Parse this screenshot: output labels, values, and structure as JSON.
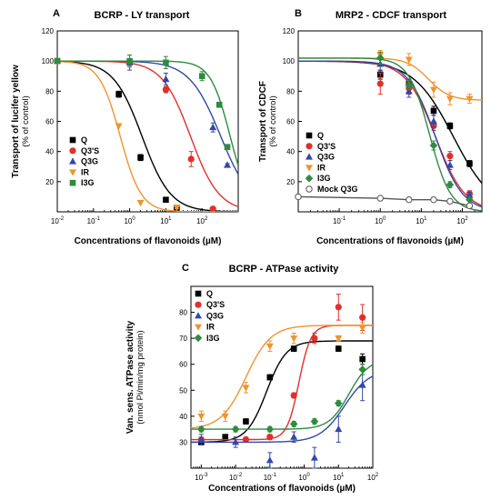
{
  "chart_data": [
    {
      "type": "scatter",
      "panel": "A",
      "title": "BCRP - LY transport",
      "xlabel": "Concentrations of flavonoids (µM)",
      "ylabel": "Transport of lucifer yellow",
      "ylabel_sub": "(% of control)",
      "xscale": "log",
      "xlim": [
        0.01,
        1000
      ],
      "ylim": [
        0,
        120
      ],
      "xticks": [
        {
          "v": 0.01,
          "base": "10",
          "exp": "-2"
        },
        {
          "v": 0.1,
          "base": "10",
          "exp": "-1"
        },
        {
          "v": 1,
          "base": "10",
          "exp": "0"
        },
        {
          "v": 10,
          "base": "10",
          "exp": "1"
        },
        {
          "v": 100,
          "base": "10",
          "exp": "2"
        }
      ],
      "yticks": [
        20,
        40,
        60,
        80,
        100,
        120
      ],
      "legend_position": "left",
      "series": [
        {
          "name": "Q",
          "color": "#000000",
          "marker": "square",
          "points": [
            {
              "x": 0.01,
              "y": 100
            },
            {
              "x": 0.5,
              "y": 78
            },
            {
              "x": 2,
              "y": 36
            },
            {
              "x": 10,
              "y": 8
            },
            {
              "x": 20,
              "y": 2
            }
          ],
          "yerr": [
            0,
            2,
            2,
            1,
            1
          ],
          "curve": {
            "top": 100,
            "bottom": 0,
            "ic50": 2.2,
            "hill": 1.1
          }
        },
        {
          "name": "Q3'S",
          "color": "#e0302b",
          "marker": "circle",
          "points": [
            {
              "x": 0.01,
              "y": 100
            },
            {
              "x": 1,
              "y": 99
            },
            {
              "x": 10,
              "y": 81
            },
            {
              "x": 50,
              "y": 35
            },
            {
              "x": 200,
              "y": 2
            }
          ],
          "yerr": [
            0,
            2,
            2,
            5,
            1
          ],
          "curve": {
            "top": 100,
            "bottom": 0,
            "ic50": 48,
            "hill": 1.1
          }
        },
        {
          "name": "Q3G",
          "color": "#3348a8",
          "marker": "triangle",
          "points": [
            {
              "x": 0.01,
              "y": 100
            },
            {
              "x": 1,
              "y": 99
            },
            {
              "x": 10,
              "y": 88
            },
            {
              "x": 200,
              "y": 56
            },
            {
              "x": 500,
              "y": 31
            }
          ],
          "yerr": [
            0,
            5,
            4,
            3,
            1
          ],
          "curve": {
            "top": 100,
            "bottom": 0,
            "ic50": 330,
            "hill": 1.0
          }
        },
        {
          "name": "IR",
          "color": "#f0932e",
          "marker": "triangle-down",
          "points": [
            {
              "x": 0.01,
              "y": 100
            },
            {
              "x": 0.5,
              "y": 57
            },
            {
              "x": 2,
              "y": 6
            },
            {
              "x": 20,
              "y": 3
            }
          ],
          "yerr": [
            0,
            0,
            0,
            1
          ],
          "curve": {
            "top": 100,
            "bottom": 0,
            "ic50": 0.55,
            "hill": 1.5
          }
        },
        {
          "name": "I3G",
          "color": "#2e8b3e",
          "marker": "square",
          "points": [
            {
              "x": 0.01,
              "y": 100
            },
            {
              "x": 1,
              "y": 100
            },
            {
              "x": 10,
              "y": 99
            },
            {
              "x": 100,
              "y": 90
            },
            {
              "x": 300,
              "y": 71
            },
            {
              "x": 500,
              "y": 43
            }
          ],
          "yerr": [
            0,
            4,
            4,
            3,
            1,
            1
          ],
          "curve": {
            "top": 100,
            "bottom": 0,
            "ic50": 600,
            "hill": 1.6
          }
        }
      ]
    },
    {
      "type": "scatter",
      "panel": "B",
      "title": "MRP2 - CDCF transport",
      "xlabel": "Concentrations of flavonoids (µM)",
      "ylabel": "Transport of CDCF",
      "ylabel_sub": "(% of control)",
      "xscale": "log",
      "xlim": [
        0.01,
        300
      ],
      "ylim": [
        0,
        120
      ],
      "xticks": [
        {
          "v": 0.1,
          "base": "10",
          "exp": "-1"
        },
        {
          "v": 1,
          "base": "10",
          "exp": "0"
        },
        {
          "v": 10,
          "base": "10",
          "exp": "1"
        },
        {
          "v": 100,
          "base": "10",
          "exp": "2"
        }
      ],
      "yticks": [
        20,
        40,
        60,
        80,
        100,
        120
      ],
      "legend_position": "right",
      "series": [
        {
          "name": "Q",
          "color": "#000000",
          "marker": "square",
          "points": [
            {
              "x": 1,
              "y": 91
            },
            {
              "x": 5,
              "y": 85
            },
            {
              "x": 20,
              "y": 67
            },
            {
              "x": 50,
              "y": 57
            },
            {
              "x": 150,
              "y": 32
            }
          ],
          "yerr": [
            3,
            3,
            3,
            2,
            2
          ],
          "curve": {
            "top": 100,
            "bottom": 0,
            "ic50": 60,
            "hill": 0.9
          }
        },
        {
          "name": "Q3'S",
          "color": "#e0302b",
          "marker": "circle",
          "points": [
            {
              "x": 1,
              "y": 85
            },
            {
              "x": 5,
              "y": 82
            },
            {
              "x": 20,
              "y": 57
            },
            {
              "x": 50,
              "y": 37
            },
            {
              "x": 150,
              "y": 12
            }
          ],
          "yerr": [
            7,
            4,
            3,
            3,
            2
          ],
          "curve": {
            "top": 100,
            "bottom": 0,
            "ic50": 22,
            "hill": 1.2
          }
        },
        {
          "name": "Q3G",
          "color": "#3348a8",
          "marker": "triangle",
          "points": [
            {
              "x": 1,
              "y": 98
            },
            {
              "x": 5,
              "y": 80
            },
            {
              "x": 20,
              "y": 60
            },
            {
              "x": 50,
              "y": 31
            },
            {
              "x": 150,
              "y": 11
            }
          ],
          "yerr": [
            5,
            4,
            4,
            3,
            2
          ],
          "curve": {
            "top": 100,
            "bottom": 0,
            "ic50": 22,
            "hill": 1.3
          }
        },
        {
          "name": "IR",
          "color": "#f0932e",
          "marker": "triangle-down",
          "points": [
            {
              "x": 1,
              "y": 104
            },
            {
              "x": 5,
              "y": 101
            },
            {
              "x": 20,
              "y": 81
            },
            {
              "x": 50,
              "y": 75
            },
            {
              "x": 150,
              "y": 75
            }
          ],
          "yerr": [
            3,
            4,
            5,
            4,
            3
          ],
          "curve": {
            "top": 102,
            "bottom": 74,
            "ic50": 15,
            "hill": 1.7
          }
        },
        {
          "name": "I3G",
          "color": "#2e8b3e",
          "marker": "diamond",
          "points": [
            {
              "x": 1,
              "y": 102
            },
            {
              "x": 5,
              "y": 84
            },
            {
              "x": 20,
              "y": 44
            },
            {
              "x": 50,
              "y": 18
            },
            {
              "x": 150,
              "y": 8
            }
          ],
          "yerr": [
            4,
            3,
            3,
            2,
            1
          ],
          "curve": {
            "top": 102,
            "bottom": 0,
            "ic50": 16,
            "hill": 1.7
          }
        },
        {
          "name": "Mock Q3G",
          "color": "#555555",
          "marker": "open-circle",
          "points": [
            {
              "x": 0.01,
              "y": 10
            },
            {
              "x": 1,
              "y": 9
            },
            {
              "x": 5,
              "y": 8
            },
            {
              "x": 20,
              "y": 8
            },
            {
              "x": 50,
              "y": 7
            },
            {
              "x": 150,
              "y": 4
            }
          ],
          "yerr": [
            0,
            0,
            0,
            0,
            0,
            0
          ],
          "curve": {
            "type": "linear"
          }
        }
      ]
    },
    {
      "type": "scatter",
      "panel": "C",
      "title": "BCRP - ATPase activity",
      "xlabel": "Concentrations of flavonoids (µM)",
      "ylabel": "Van. sens. ATPase activity",
      "ylabel_sub": "(nmol Pi/min/mg protein)",
      "xscale": "log",
      "xlim": [
        0.0005,
        100
      ],
      "ylim": [
        20,
        90
      ],
      "xticks": [
        {
          "v": 0.001,
          "base": "10",
          "exp": "-3"
        },
        {
          "v": 0.01,
          "base": "10",
          "exp": "-2"
        },
        {
          "v": 0.1,
          "base": "10",
          "exp": "-1"
        },
        {
          "v": 1,
          "base": "10",
          "exp": "0"
        },
        {
          "v": 10,
          "base": "10",
          "exp": "1"
        },
        {
          "v": 100,
          "base": "10",
          "exp": "2"
        }
      ],
      "yticks": [
        30,
        40,
        50,
        60,
        70,
        80
      ],
      "legend_position": "top-left",
      "series": [
        {
          "name": "Q",
          "color": "#000000",
          "marker": "square",
          "points": [
            {
              "x": 0.001,
              "y": 30
            },
            {
              "x": 0.005,
              "y": 32
            },
            {
              "x": 0.02,
              "y": 38
            },
            {
              "x": 0.1,
              "y": 55
            },
            {
              "x": 0.5,
              "y": 66
            },
            {
              "x": 10,
              "y": 66
            },
            {
              "x": 50,
              "y": 62
            }
          ],
          "yerr": [
            1,
            1,
            1,
            1,
            1,
            1,
            2
          ],
          "curve": {
            "bottom": 30,
            "top": 69,
            "ec50": 0.08,
            "hill": 1.5
          }
        },
        {
          "name": "Q3'S",
          "color": "#e0302b",
          "marker": "circle",
          "points": [
            {
              "x": 0.001,
              "y": 31
            },
            {
              "x": 0.02,
              "y": 31
            },
            {
              "x": 0.1,
              "y": 32
            },
            {
              "x": 0.5,
              "y": 48
            },
            {
              "x": 2,
              "y": 70
            },
            {
              "x": 10,
              "y": 82
            },
            {
              "x": 50,
              "y": 78
            }
          ],
          "yerr": [
            1,
            1,
            1,
            1,
            2,
            5,
            5
          ],
          "curve": {
            "bottom": 31,
            "top": 75,
            "ec50": 0.7,
            "hill": 2.5
          }
        },
        {
          "name": "Q3G",
          "color": "#3348a8",
          "marker": "triangle",
          "points": [
            {
              "x": 0.001,
              "y": 31
            },
            {
              "x": 0.01,
              "y": 30
            },
            {
              "x": 0.1,
              "y": 23
            },
            {
              "x": 0.5,
              "y": 32
            },
            {
              "x": 2,
              "y": 24
            },
            {
              "x": 10,
              "y": 35
            },
            {
              "x": 50,
              "y": 52
            }
          ],
          "yerr": [
            2,
            2,
            3,
            2,
            4,
            5,
            6
          ],
          "curve": {
            "bottom": 30,
            "top": 58,
            "ec50": 15,
            "hill": 1.2
          }
        },
        {
          "name": "IR",
          "color": "#f0932e",
          "marker": "triangle-down",
          "points": [
            {
              "x": 0.001,
              "y": 40
            },
            {
              "x": 0.005,
              "y": 40
            },
            {
              "x": 0.02,
              "y": 51
            },
            {
              "x": 0.1,
              "y": 67
            },
            {
              "x": 0.5,
              "y": 70
            },
            {
              "x": 10,
              "y": 70
            },
            {
              "x": 50,
              "y": 74
            }
          ],
          "yerr": [
            2,
            2,
            2,
            2,
            2,
            1,
            2
          ],
          "curve": {
            "bottom": 35,
            "top": 75,
            "ec50": 0.02,
            "hill": 1.2
          }
        },
        {
          "name": "I3G",
          "color": "#2e8b3e",
          "marker": "diamond",
          "points": [
            {
              "x": 0.001,
              "y": 35
            },
            {
              "x": 0.01,
              "y": 35
            },
            {
              "x": 0.1,
              "y": 35
            },
            {
              "x": 0.5,
              "y": 37
            },
            {
              "x": 2,
              "y": 38
            },
            {
              "x": 10,
              "y": 45
            },
            {
              "x": 50,
              "y": 58
            }
          ],
          "yerr": [
            1,
            1,
            1,
            1,
            1,
            1,
            2
          ],
          "curve": {
            "bottom": 35,
            "top": 62,
            "ec50": 20,
            "hill": 1.5
          }
        }
      ]
    }
  ]
}
